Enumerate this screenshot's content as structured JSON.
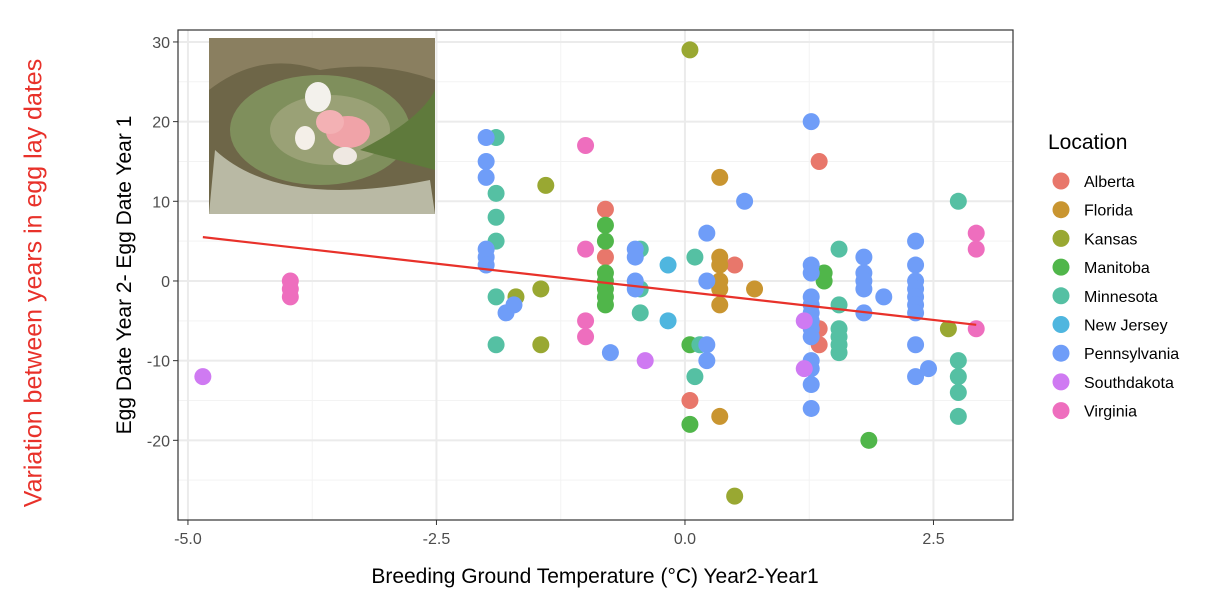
{
  "side_annotation": "Variation between years in egg lay dates",
  "side_annotation_color": "#e8312a",
  "inset_photo": {
    "description_icon": "nest-with-eggs-photo"
  },
  "chart_data": {
    "type": "scatter",
    "title": "",
    "xlabel": "Breeding Ground Temperature (°C) Year2-Year1",
    "ylabel": "Egg Date Year 2- Egg Date Year 1",
    "xlim": [
      -5.1,
      3.3
    ],
    "ylim": [
      -30,
      31.5
    ],
    "xticks": [
      -5.0,
      -2.5,
      0.0,
      2.5
    ],
    "xtick_labels": [
      "-5.0",
      "-2.5",
      "0.0",
      "2.5"
    ],
    "yticks": [
      -20,
      -10,
      0,
      10,
      20,
      30
    ],
    "ytick_labels": [
      "-20",
      "-10",
      "0",
      "10",
      "20",
      "30"
    ],
    "grid": true,
    "legend": {
      "title": "Location",
      "placement": "right"
    },
    "trend_line": {
      "color": "#e8312a",
      "x": [
        -4.85,
        2.93
      ],
      "y": [
        5.5,
        -5.5
      ]
    },
    "series": [
      {
        "name": "Alberta",
        "color": "#E8776B",
        "points": [
          [
            -0.8,
            9
          ],
          [
            -0.8,
            3
          ],
          [
            0.5,
            2
          ],
          [
            1.35,
            15
          ],
          [
            1.35,
            -6
          ],
          [
            1.35,
            -8
          ],
          [
            0.05,
            -15
          ]
        ]
      },
      {
        "name": "Florida",
        "color": "#C99530",
        "points": [
          [
            0.35,
            13
          ],
          [
            0.35,
            3
          ],
          [
            0.35,
            2
          ],
          [
            0.35,
            0
          ],
          [
            0.35,
            -1
          ],
          [
            0.35,
            -3
          ],
          [
            0.7,
            -1
          ],
          [
            0.35,
            -17
          ]
        ]
      },
      {
        "name": "Kansas",
        "color": "#99A832",
        "points": [
          [
            0.05,
            29
          ],
          [
            -1.4,
            12
          ],
          [
            -1.7,
            -2
          ],
          [
            -1.45,
            -1
          ],
          [
            -1.45,
            -8
          ],
          [
            0.5,
            -27
          ],
          [
            2.65,
            -6
          ]
        ]
      },
      {
        "name": "Manitoba",
        "color": "#50B64A",
        "points": [
          [
            -0.8,
            7
          ],
          [
            -0.8,
            5
          ],
          [
            -0.8,
            1
          ],
          [
            -0.8,
            0
          ],
          [
            -0.8,
            -1
          ],
          [
            -0.8,
            -2
          ],
          [
            -0.8,
            -3
          ],
          [
            0.05,
            -8
          ],
          [
            0.05,
            -18
          ],
          [
            1.4,
            1
          ],
          [
            1.4,
            0
          ],
          [
            1.85,
            -20
          ]
        ]
      },
      {
        "name": "Minnesota",
        "color": "#55C0A3",
        "points": [
          [
            -1.9,
            18
          ],
          [
            -1.9,
            11
          ],
          [
            -1.9,
            8
          ],
          [
            -1.9,
            5
          ],
          [
            -1.9,
            -2
          ],
          [
            -1.9,
            -8
          ],
          [
            -0.45,
            4
          ],
          [
            -0.45,
            -1
          ],
          [
            -0.45,
            -4
          ],
          [
            0.1,
            3
          ],
          [
            0.1,
            -12
          ],
          [
            0.15,
            -8
          ],
          [
            1.55,
            4
          ],
          [
            1.55,
            -3
          ],
          [
            1.55,
            -6
          ],
          [
            1.55,
            -7
          ],
          [
            1.55,
            -8
          ],
          [
            1.55,
            -9
          ],
          [
            2.75,
            10
          ],
          [
            2.75,
            -10
          ],
          [
            2.75,
            -12
          ],
          [
            2.75,
            -14
          ],
          [
            2.75,
            -17
          ]
        ]
      },
      {
        "name": "New Jersey",
        "color": "#4FB6DF",
        "points": [
          [
            -0.17,
            2
          ],
          [
            -0.17,
            -5
          ]
        ]
      },
      {
        "name": "Pennsylvania",
        "color": "#6F9DF8",
        "points": [
          [
            -2,
            18
          ],
          [
            -2,
            15
          ],
          [
            -2,
            13
          ],
          [
            -2,
            4
          ],
          [
            -2,
            3
          ],
          [
            -2,
            2
          ],
          [
            -1.8,
            -4
          ],
          [
            -1.72,
            -3
          ],
          [
            -0.75,
            -9
          ],
          [
            -0.5,
            4
          ],
          [
            -0.5,
            3
          ],
          [
            -0.5,
            0
          ],
          [
            -0.5,
            -1
          ],
          [
            0.22,
            6
          ],
          [
            0.22,
            0
          ],
          [
            0.22,
            -8
          ],
          [
            0.22,
            -10
          ],
          [
            0.6,
            10
          ],
          [
            1.27,
            20
          ],
          [
            1.27,
            2
          ],
          [
            1.27,
            1
          ],
          [
            1.27,
            -2
          ],
          [
            1.27,
            -3
          ],
          [
            1.27,
            -4
          ],
          [
            1.27,
            -5
          ],
          [
            1.27,
            -6
          ],
          [
            1.27,
            -7
          ],
          [
            1.27,
            -10
          ],
          [
            1.27,
            -11
          ],
          [
            1.27,
            -13
          ],
          [
            1.27,
            -16
          ],
          [
            1.8,
            3
          ],
          [
            1.8,
            1
          ],
          [
            1.8,
            0
          ],
          [
            1.8,
            -1
          ],
          [
            1.8,
            -4
          ],
          [
            2.0,
            -2
          ],
          [
            2.32,
            5
          ],
          [
            2.32,
            2
          ],
          [
            2.32,
            0
          ],
          [
            2.32,
            -1
          ],
          [
            2.32,
            -2
          ],
          [
            2.32,
            -3
          ],
          [
            2.32,
            -4
          ],
          [
            2.32,
            -8
          ],
          [
            2.32,
            -12
          ],
          [
            2.45,
            -11
          ]
        ]
      },
      {
        "name": "Southdakota",
        "color": "#CF7AF2",
        "points": [
          [
            -4.85,
            -12
          ],
          [
            -0.4,
            -10
          ],
          [
            1.2,
            -5
          ],
          [
            1.2,
            -11
          ]
        ]
      },
      {
        "name": "Virginia",
        "color": "#EE6EBE",
        "points": [
          [
            -3.97,
            0
          ],
          [
            -3.97,
            -1
          ],
          [
            -3.97,
            -2
          ],
          [
            -1,
            17
          ],
          [
            -1,
            4
          ],
          [
            -1,
            -5
          ],
          [
            -1,
            -7
          ],
          [
            2.93,
            6
          ],
          [
            2.93,
            4
          ],
          [
            2.93,
            -6
          ]
        ]
      }
    ]
  }
}
